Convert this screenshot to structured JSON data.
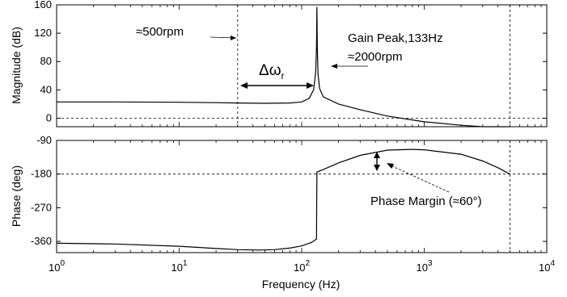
{
  "chart_data": [
    {
      "type": "line",
      "panel": "magnitude",
      "ylabel": "Magnitude (dB)",
      "xlabel": "",
      "xscale": "log",
      "xlim": [
        1,
        10000
      ],
      "ylim": [
        -12,
        160
      ],
      "yticks": [
        0,
        40,
        80,
        120,
        160
      ],
      "xticks": [
        1,
        10,
        100,
        1000,
        10000
      ],
      "grid": false,
      "reference_lines": {
        "horizontal": [
          0
        ],
        "vertical": [
          30,
          5000
        ]
      },
      "series": [
        {
          "x": [
            1,
            3,
            10,
            20,
            30,
            50,
            80,
            100,
            115,
            125,
            130,
            132,
            133,
            134,
            136,
            140,
            150,
            200,
            300,
            500,
            1000,
            2000,
            3000,
            5000
          ],
          "y": [
            23,
            23,
            22.5,
            22,
            21.5,
            21,
            21.5,
            23,
            28,
            40,
            65,
            100,
            157,
            100,
            62,
            42,
            30,
            20,
            12,
            3,
            -5,
            -10,
            -12,
            -12
          ]
        }
      ],
      "annotations": [
        {
          "text": "≈500rpm"
        },
        {
          "text": "Gain Peak,133Hz"
        },
        {
          "text": "≈2000rpm"
        },
        {
          "text": "Δω",
          "subscript": "r"
        }
      ]
    },
    {
      "type": "line",
      "panel": "phase",
      "ylabel": "Phase (deg)",
      "xlabel": "Frequency (Hz)",
      "xscale": "log",
      "xlim": [
        1,
        10000
      ],
      "ylim": [
        -390,
        -90
      ],
      "yticks": [
        -360,
        -270,
        -180,
        -90
      ],
      "xticks": [
        1,
        10,
        100,
        1000,
        10000
      ],
      "grid": false,
      "reference_lines": {
        "horizontal": [
          -180
        ],
        "vertical": [
          5000
        ]
      },
      "series": [
        {
          "x": [
            1,
            3,
            10,
            20,
            30,
            45,
            60,
            80,
            100,
            120,
            132,
            133,
            134,
            150,
            200,
            300,
            500,
            800,
            1000,
            2000,
            3000,
            4000,
            5000
          ],
          "y": [
            -365,
            -367,
            -373,
            -379,
            -382,
            -383,
            -382,
            -378,
            -372,
            -363,
            -354,
            -175,
            -174,
            -168,
            -150,
            -130,
            -116,
            -114,
            -115,
            -127,
            -145,
            -163,
            -180
          ]
        }
      ],
      "annotations": [
        {
          "text": "Phase Margin (≈60°)"
        }
      ]
    }
  ],
  "axes": {
    "x_tick_base": "10",
    "x_tick_exponents": [
      "0",
      "1",
      "2",
      "3",
      "4"
    ],
    "mag_tick_labels": [
      "0",
      "40",
      "80",
      "120",
      "160"
    ],
    "phase_tick_labels": [
      "-360",
      "-270",
      "-180",
      "-90"
    ]
  }
}
